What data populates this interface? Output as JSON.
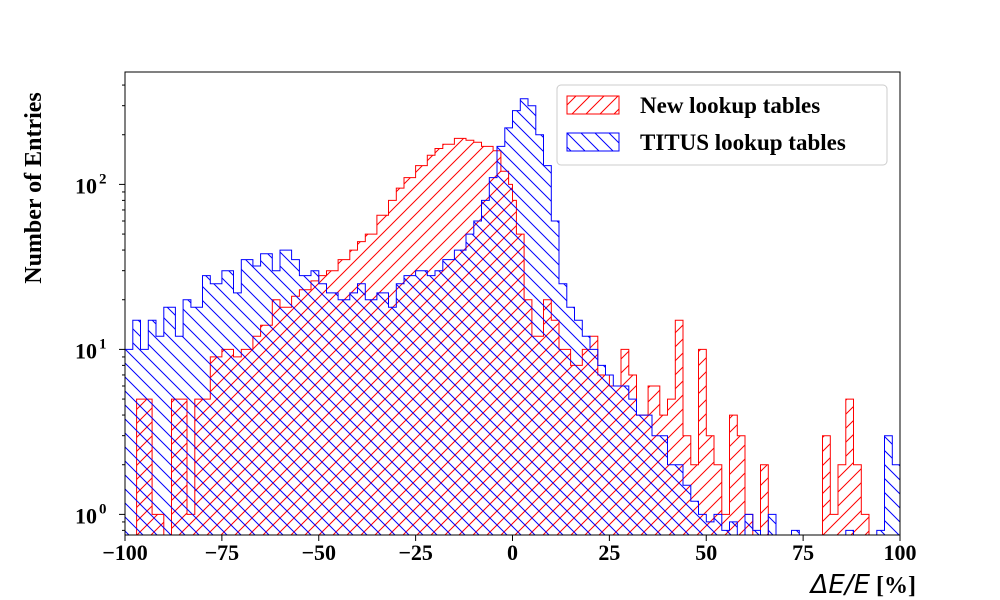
{
  "chart_data": {
    "type": "histogram",
    "yscale": "log",
    "xlim": [
      -100,
      100
    ],
    "ylim": [
      0.75,
      480
    ],
    "xticks": [
      -100,
      -75,
      -50,
      -25,
      0,
      25,
      50,
      75,
      100
    ],
    "xtick_labels": [
      "−100",
      "−75",
      "−50",
      "−25",
      "0",
      "25",
      "50",
      "75",
      "100"
    ],
    "yticks": [
      1,
      10,
      100
    ],
    "ytick_labels": [
      {
        "base": "10",
        "exp": "0"
      },
      {
        "base": "10",
        "exp": "1"
      },
      {
        "base": "10",
        "exp": "2"
      }
    ],
    "xlabel": {
      "main": "ΔE/E",
      "unit": "[%]"
    },
    "ylabel": "Number of Entries",
    "legend": {
      "position": "top-right"
    },
    "series": [
      {
        "name": "New lookup tables",
        "color": "#ff0000",
        "hatch": "/",
        "points": [
          [
            -100,
            0.7
          ],
          [
            -97,
            5
          ],
          [
            -93,
            1
          ],
          [
            -90,
            0.7
          ],
          [
            -88,
            5
          ],
          [
            -84,
            1
          ],
          [
            -82,
            5
          ],
          [
            -78,
            9
          ],
          [
            -75,
            10
          ],
          [
            -72,
            9
          ],
          [
            -70,
            10
          ],
          [
            -67,
            12
          ],
          [
            -65,
            14
          ],
          [
            -62,
            20
          ],
          [
            -60,
            18
          ],
          [
            -57,
            21
          ],
          [
            -55,
            23
          ],
          [
            -52,
            26
          ],
          [
            -50,
            28
          ],
          [
            -48,
            30
          ],
          [
            -45,
            35
          ],
          [
            -42,
            40
          ],
          [
            -40,
            45
          ],
          [
            -38,
            50
          ],
          [
            -35,
            65
          ],
          [
            -32,
            80
          ],
          [
            -30,
            95
          ],
          [
            -28,
            110
          ],
          [
            -25,
            130
          ],
          [
            -22,
            150
          ],
          [
            -20,
            165
          ],
          [
            -18,
            175
          ],
          [
            -15,
            190
          ],
          [
            -12,
            185
          ],
          [
            -10,
            180
          ],
          [
            -8,
            170
          ],
          [
            -5,
            160
          ],
          [
            -3,
            120
          ],
          [
            -1,
            100
          ],
          [
            0,
            80
          ],
          [
            1,
            50
          ],
          [
            3,
            20
          ],
          [
            5,
            12
          ],
          [
            8,
            20
          ],
          [
            10,
            15
          ],
          [
            12,
            10
          ],
          [
            15,
            8
          ],
          [
            18,
            10
          ],
          [
            20,
            12
          ],
          [
            22,
            7
          ],
          [
            25,
            6
          ],
          [
            28,
            10
          ],
          [
            30,
            7
          ],
          [
            32,
            4
          ],
          [
            35,
            6
          ],
          [
            38,
            4
          ],
          [
            40,
            5
          ],
          [
            42,
            15
          ],
          [
            44,
            3
          ],
          [
            46,
            2
          ],
          [
            48,
            10
          ],
          [
            50,
            3
          ],
          [
            52,
            2
          ],
          [
            54,
            1
          ],
          [
            56,
            4
          ],
          [
            58,
            3
          ],
          [
            60,
            1
          ],
          [
            62,
            0.7
          ],
          [
            64,
            2
          ],
          [
            66,
            0.7
          ],
          [
            80,
            3
          ],
          [
            82,
            1
          ],
          [
            84,
            2
          ],
          [
            86,
            5
          ],
          [
            88,
            2
          ],
          [
            90,
            1
          ],
          [
            92,
            0.7
          ]
        ]
      },
      {
        "name": "TITUS lookup tables",
        "color": "#0000ff",
        "hatch": "\\",
        "points": [
          [
            -100,
            10
          ],
          [
            -98,
            15
          ],
          [
            -96,
            10
          ],
          [
            -94,
            15
          ],
          [
            -92,
            12
          ],
          [
            -90,
            18
          ],
          [
            -87,
            12
          ],
          [
            -85,
            20
          ],
          [
            -83,
            18
          ],
          [
            -80,
            28
          ],
          [
            -78,
            25
          ],
          [
            -75,
            30
          ],
          [
            -72,
            22
          ],
          [
            -70,
            35
          ],
          [
            -67,
            32
          ],
          [
            -65,
            38
          ],
          [
            -62,
            30
          ],
          [
            -60,
            40
          ],
          [
            -57,
            35
          ],
          [
            -55,
            28
          ],
          [
            -52,
            30
          ],
          [
            -50,
            25
          ],
          [
            -48,
            22
          ],
          [
            -45,
            20
          ],
          [
            -42,
            22
          ],
          [
            -40,
            25
          ],
          [
            -38,
            20
          ],
          [
            -35,
            22
          ],
          [
            -32,
            18
          ],
          [
            -30,
            25
          ],
          [
            -28,
            28
          ],
          [
            -25,
            30
          ],
          [
            -22,
            28
          ],
          [
            -20,
            30
          ],
          [
            -18,
            35
          ],
          [
            -15,
            40
          ],
          [
            -12,
            50
          ],
          [
            -10,
            60
          ],
          [
            -8,
            80
          ],
          [
            -6,
            110
          ],
          [
            -4,
            170
          ],
          [
            -2,
            220
          ],
          [
            0,
            280
          ],
          [
            2,
            330
          ],
          [
            4,
            300
          ],
          [
            6,
            200
          ],
          [
            8,
            130
          ],
          [
            10,
            60
          ],
          [
            12,
            25
          ],
          [
            14,
            18
          ],
          [
            16,
            15
          ],
          [
            18,
            12
          ],
          [
            20,
            10
          ],
          [
            22,
            8
          ],
          [
            24,
            7
          ],
          [
            26,
            6
          ],
          [
            28,
            6
          ],
          [
            30,
            5
          ],
          [
            32,
            4
          ],
          [
            34,
            4
          ],
          [
            36,
            3
          ],
          [
            38,
            3
          ],
          [
            40,
            2
          ],
          [
            42,
            2
          ],
          [
            44,
            1.5
          ],
          [
            46,
            1.2
          ],
          [
            48,
            1
          ],
          [
            50,
            0.9
          ],
          [
            52,
            1
          ],
          [
            54,
            0.8
          ],
          [
            56,
            0.9
          ],
          [
            58,
            0.7
          ],
          [
            60,
            1
          ],
          [
            62,
            0.8
          ],
          [
            64,
            0.7
          ],
          [
            66,
            1
          ],
          [
            68,
            0.7
          ],
          [
            70,
            0.7
          ],
          [
            72,
            0.8
          ],
          [
            74,
            0.7
          ],
          [
            76,
            0.7
          ],
          [
            78,
            0.7
          ],
          [
            80,
            0.7
          ],
          [
            82,
            0.7
          ],
          [
            84,
            0.7
          ],
          [
            86,
            0.8
          ],
          [
            88,
            0.7
          ],
          [
            90,
            0.7
          ],
          [
            92,
            0.7
          ],
          [
            94,
            0.8
          ],
          [
            96,
            3
          ],
          [
            98,
            2
          ]
        ]
      }
    ]
  }
}
